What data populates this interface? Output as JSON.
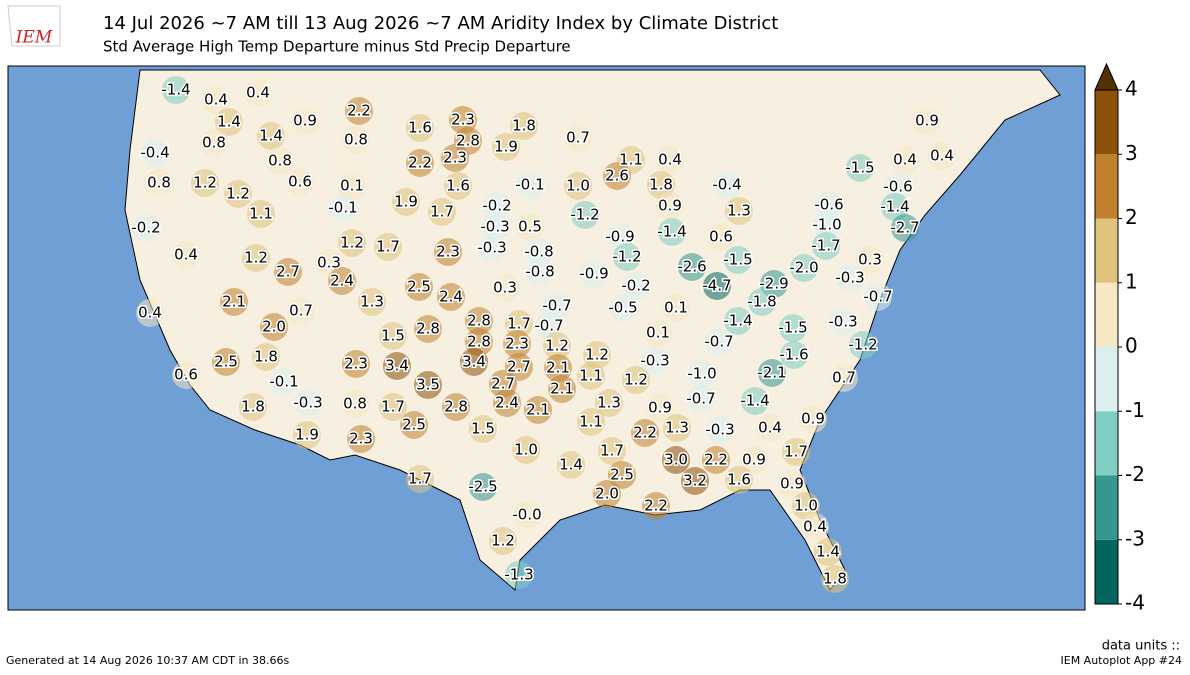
{
  "header": {
    "logo": "IEM",
    "title": "14 Jul 2026 ~7 AM till 13 Aug 2026 ~7 AM Aridity Index by Climate District",
    "subtitle": "Std Average High Temp Departure minus Std Precip Departure"
  },
  "map": {
    "ocean_color": "#6f9fd4",
    "land_color": "#f7efe0",
    "value_labels": [
      "-1.4",
      "0.4",
      "0.4",
      "1.4",
      "0.8",
      "1.4",
      "0.9",
      "2.2",
      "0.8",
      "1.6",
      "2.3",
      "1.8",
      "2.8",
      "1.9",
      "0.7",
      "-0.4",
      "0.8",
      "1.2",
      "0.8",
      "0.6",
      "2.2",
      "2.3",
      "1.1",
      "0.4",
      "2.6",
      "1.8",
      "-0.4",
      "-1.5",
      "0.4",
      "0.4",
      "0.9",
      "-0.6",
      "1.2",
      "1.1",
      "0.1",
      "-0.1",
      "1.9",
      "1.6",
      "-0.1",
      "1.0",
      "0.9",
      "1.3",
      "-0.6",
      "-1.4",
      "-0.2",
      "1.7",
      "-0.2",
      "-0.3",
      "0.5",
      "-1.2",
      "-1.0",
      "-2.7",
      "0.4",
      "1.2",
      "1.2",
      "1.7",
      "2.3",
      "-0.3",
      "-0.8",
      "-0.9",
      "-1.4",
      "0.6",
      "-1.7",
      "0.3",
      "2.7",
      "-1.2",
      "-0.8",
      "-0.9",
      "-2.6",
      "-1.5",
      "-2.0",
      "0.3",
      "2.4",
      "-0.3",
      "2.1",
      "0.7",
      "1.3",
      "2.5",
      "2.4",
      "0.3",
      "-0.2",
      "-4.7",
      "-2.9",
      "-0.7",
      "-1.8",
      "-0.7",
      "0.1",
      "-0.5",
      "0.4",
      "2.0",
      "1.5",
      "2.8",
      "2.8",
      "1.7",
      "-0.7",
      "0.1",
      "-1.4",
      "-1.5",
      "-0.3",
      "2.8",
      "2.3",
      "1.2",
      "-0.7",
      "-1.2",
      "1.8",
      "2.3",
      "3.4",
      "3.4",
      "2.7",
      "2.1",
      "1.2",
      "-0.3",
      "-1.6",
      "-1.0",
      "-2.1",
      "0.6",
      "-0.1",
      "3.5",
      "2.7",
      "2.1",
      "1.1",
      "1.2",
      "0.7",
      "2.8",
      "2.4",
      "2.1",
      "1.3",
      "0.9",
      "-0.7",
      "-1.4",
      "2.5",
      "1.8",
      "-0.3",
      "0.8",
      "1.7",
      "2.5",
      "1.1",
      "0.9",
      "0.4",
      "-0.3",
      "1.3",
      "2.2",
      "1.5",
      "1.9",
      "2.3",
      "1.0",
      "1.7",
      "0.9",
      "1.7",
      "3.0",
      "2.2",
      "1.4",
      "1.7",
      "-2.5",
      "2.5",
      "3.2",
      "1.6",
      "0.9",
      "2.0",
      "2.2",
      "1.0",
      "-0.0",
      "0.4",
      "1.2",
      "1.4",
      "-1.3",
      "1.8"
    ],
    "values": [
      -1.4,
      0.4,
      0.4,
      1.4,
      0.8,
      1.4,
      0.9,
      2.2,
      0.8,
      1.6,
      2.3,
      1.8,
      2.8,
      1.9,
      0.7,
      -0.4,
      0.8,
      1.2,
      0.8,
      0.6,
      2.2,
      2.3,
      1.1,
      0.4,
      2.6,
      1.8,
      -0.4,
      -1.5,
      0.4,
      0.4,
      0.9,
      -0.6,
      1.2,
      1.1,
      0.1,
      -0.1,
      1.9,
      1.6,
      -0.1,
      1.0,
      0.9,
      1.3,
      -0.6,
      -1.4,
      -0.2,
      1.7,
      -0.2,
      -0.3,
      0.5,
      -1.2,
      -1.0,
      -2.7,
      0.4,
      1.2,
      1.2,
      1.7,
      2.3,
      -0.3,
      -0.8,
      -0.9,
      -1.4,
      0.6,
      -1.7,
      0.3,
      2.7,
      -1.2,
      -0.8,
      -0.9,
      -2.6,
      -1.5,
      -2.0,
      0.3,
      2.4,
      -0.3,
      2.1,
      0.7,
      1.3,
      2.5,
      2.4,
      0.3,
      -0.2,
      -4.7,
      -2.9,
      -0.7,
      -1.8,
      -0.7,
      0.1,
      -0.5,
      0.4,
      2.0,
      1.5,
      2.8,
      2.8,
      1.7,
      -0.7,
      0.1,
      -1.4,
      -1.5,
      -0.3,
      2.8,
      2.3,
      1.2,
      -0.7,
      -1.2,
      1.8,
      2.3,
      3.4,
      3.4,
      2.7,
      2.1,
      1.2,
      -0.3,
      -1.6,
      -1.0,
      -2.1,
      0.6,
      -0.1,
      3.5,
      2.7,
      2.1,
      1.1,
      1.2,
      0.7,
      2.8,
      2.4,
      2.1,
      1.3,
      0.9,
      -0.7,
      -1.4,
      2.5,
      1.8,
      -0.3,
      0.8,
      1.7,
      2.5,
      1.1,
      0.9,
      0.4,
      -0.3,
      1.3,
      2.2,
      1.5,
      1.9,
      2.3,
      1.0,
      1.7,
      0.9,
      1.7,
      3.0,
      2.2,
      1.4,
      1.7,
      -2.5,
      2.5,
      3.2,
      1.6,
      0.9,
      2.0,
      2.2,
      1.0,
      -0.0,
      0.4,
      1.2,
      1.4,
      -1.3,
      1.8
    ]
  },
  "colorbar": {
    "ticks": [
      -4,
      -3,
      -2,
      -1,
      0,
      1,
      2,
      3,
      4
    ],
    "colors": [
      "#01665e",
      "#35978f",
      "#80cdc1",
      "#dbf0ee",
      "#f6e8c3",
      "#dfc27d",
      "#bf812d",
      "#8c510a"
    ],
    "extend_color": "#543005"
  },
  "footer": {
    "generated": "Generated at 14 Aug 2026 10:37 AM CDT in 38.66s",
    "units": "data units ::",
    "app": "IEM Autoplot App #24"
  }
}
